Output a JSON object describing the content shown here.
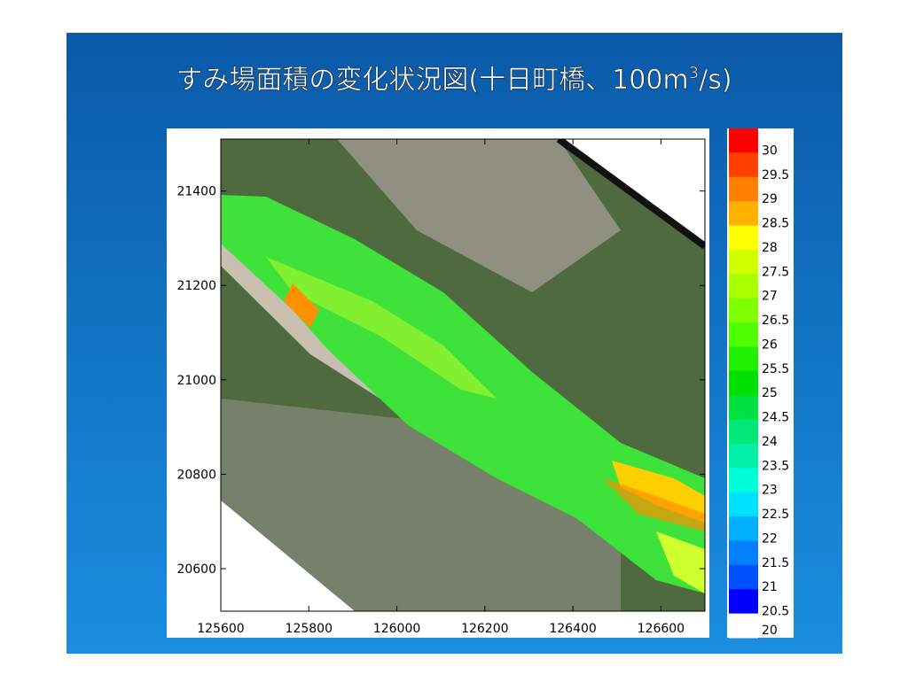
{
  "title": {
    "main": "すみ場面積の変化状況図(十日町橋、100m",
    "sup": "3",
    "tail": "/s)"
  },
  "plot": {
    "xlim": [
      125600,
      126700
    ],
    "ylim": [
      20510,
      21510
    ],
    "xticks": [
      125600,
      125800,
      126000,
      126200,
      126400,
      126600
    ],
    "yticks": [
      20600,
      20800,
      21000,
      21200,
      21400
    ]
  },
  "colorbar": {
    "levels": [
      30,
      29.5,
      29,
      28.5,
      28,
      27.5,
      27,
      26.5,
      26,
      25.5,
      25,
      24.5,
      24,
      23.5,
      23,
      22.5,
      22,
      21.5,
      21,
      20.5,
      20
    ],
    "colors": [
      "#ff0000",
      "#ff4000",
      "#ff8000",
      "#ffb000",
      "#ffff00",
      "#d0ff00",
      "#a8ff00",
      "#80ff00",
      "#50ff00",
      "#20f000",
      "#00e000",
      "#00e040",
      "#00e878",
      "#00f0a8",
      "#00ffd8",
      "#00e0ff",
      "#00b0ff",
      "#0080ff",
      "#0050ff",
      "#0000ff",
      "#ffffff"
    ]
  }
}
